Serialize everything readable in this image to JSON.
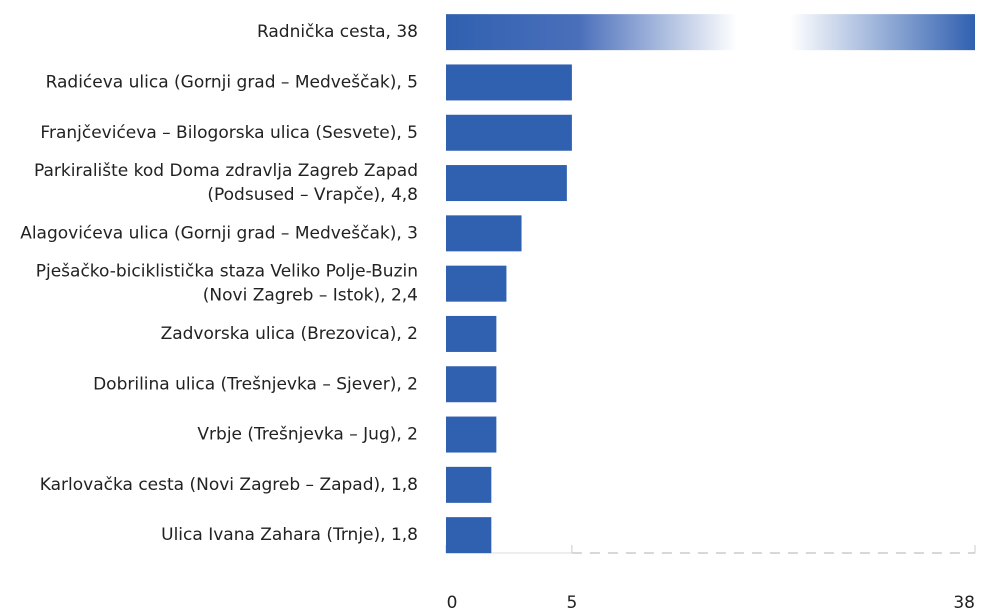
{
  "chart_data": {
    "type": "bar",
    "orientation": "horizontal",
    "categories": [
      [
        "Radnička cesta, 38"
      ],
      [
        "Radićeva ulica (Gornji grad – Medveščak), 5"
      ],
      [
        "Franjčevićeva – Bilogorska ulica (Sesvete), 5"
      ],
      [
        "Parkiralište kod Doma zdravlja Zagreb Zapad",
        "(Podsused – Vrapče), 4,8"
      ],
      [
        "Alagovićeva ulica (Gornji grad – Medveščak), 3"
      ],
      [
        "Pješačko-biciklistička staza Veliko Polje-Buzin",
        "(Novi Zagreb – Istok), 2,4"
      ],
      [
        "Zadvorska ulica (Brezovica), 2"
      ],
      [
        "Dobrilina ulica (Trešnjevka – Sjever), 2"
      ],
      [
        "Vrbje (Trešnjevka – Jug), 2"
      ],
      [
        "Karlovačka cesta (Novi Zagreb – Zapad), 1,8"
      ],
      [
        "Ulica Ivana Zahara (Trnje), 1,8"
      ]
    ],
    "values": [
      38,
      5,
      5,
      4.8,
      3,
      2.4,
      2,
      2,
      2,
      1.8,
      1.8
    ],
    "color": "#3060b0",
    "xlim": [
      0,
      38
    ],
    "xticks": [
      0,
      5,
      38
    ],
    "broken_axis": true
  }
}
